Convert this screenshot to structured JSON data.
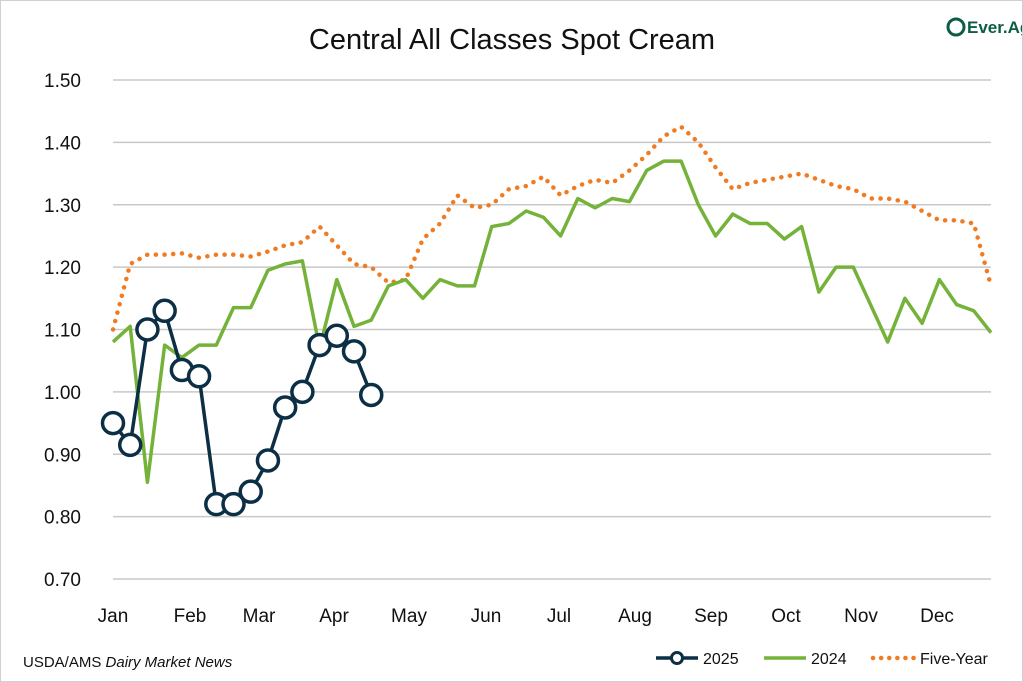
{
  "logo": {
    "text": "Ever.Ag",
    "color": "#0d5c46"
  },
  "source": {
    "prefix": "USDA/AMS ",
    "italic": "Dairy Market News"
  },
  "chart_data": {
    "type": "line",
    "title": "Central All Classes Spot Cream",
    "xlabel": "",
    "ylabel": "",
    "ylim": [
      0.7,
      1.5
    ],
    "yticks": [
      "0.70",
      "0.80",
      "0.90",
      "1.00",
      "1.10",
      "1.20",
      "1.30",
      "1.40",
      "1.50"
    ],
    "xtick_labels": [
      "Jan",
      "Feb",
      "Mar",
      "Apr",
      "May",
      "Jun",
      "Jul",
      "Aug",
      "Sep",
      "Oct",
      "Nov",
      "Dec"
    ],
    "x_unit": "week of year (0-51)",
    "grid": true,
    "legend_position": "bottom-right",
    "series": [
      {
        "name": "2025",
        "color": "#0d2f45",
        "style": "solid-markers",
        "values": [
          0.95,
          0.915,
          1.1,
          1.13,
          1.035,
          1.025,
          0.82,
          0.82,
          0.84,
          0.89,
          0.975,
          1.0,
          1.075,
          1.09,
          1.065,
          0.995
        ]
      },
      {
        "name": "2024",
        "color": "#74b23a",
        "style": "solid",
        "values": [
          1.08,
          1.105,
          0.855,
          1.075,
          1.055,
          1.075,
          1.075,
          1.135,
          1.135,
          1.195,
          1.205,
          1.21,
          1.07,
          1.18,
          1.105,
          1.115,
          1.17,
          1.18,
          1.15,
          1.18,
          1.17,
          1.17,
          1.265,
          1.27,
          1.29,
          1.28,
          1.25,
          1.31,
          1.295,
          1.31,
          1.305,
          1.355,
          1.37,
          1.37,
          1.3,
          1.25,
          1.285,
          1.27,
          1.27,
          1.245,
          1.265,
          1.16,
          1.2,
          1.2,
          1.14,
          1.08,
          1.15,
          1.11,
          1.18,
          1.14,
          1.13,
          1.095
        ]
      },
      {
        "name": "Five-Year",
        "color": "#f07b23",
        "style": "dotted",
        "values": [
          1.1,
          1.205,
          1.22,
          1.22,
          1.222,
          1.215,
          1.22,
          1.22,
          1.217,
          1.225,
          1.235,
          1.24,
          1.265,
          1.235,
          1.205,
          1.2,
          1.175,
          1.18,
          1.245,
          1.27,
          1.315,
          1.295,
          1.3,
          1.325,
          1.33,
          1.345,
          1.315,
          1.33,
          1.34,
          1.335,
          1.355,
          1.38,
          1.41,
          1.425,
          1.4,
          1.36,
          1.325,
          1.335,
          1.34,
          1.345,
          1.35,
          1.34,
          1.33,
          1.325,
          1.31,
          1.31,
          1.305,
          1.29,
          1.275,
          1.275,
          1.27,
          1.17
        ]
      }
    ]
  }
}
